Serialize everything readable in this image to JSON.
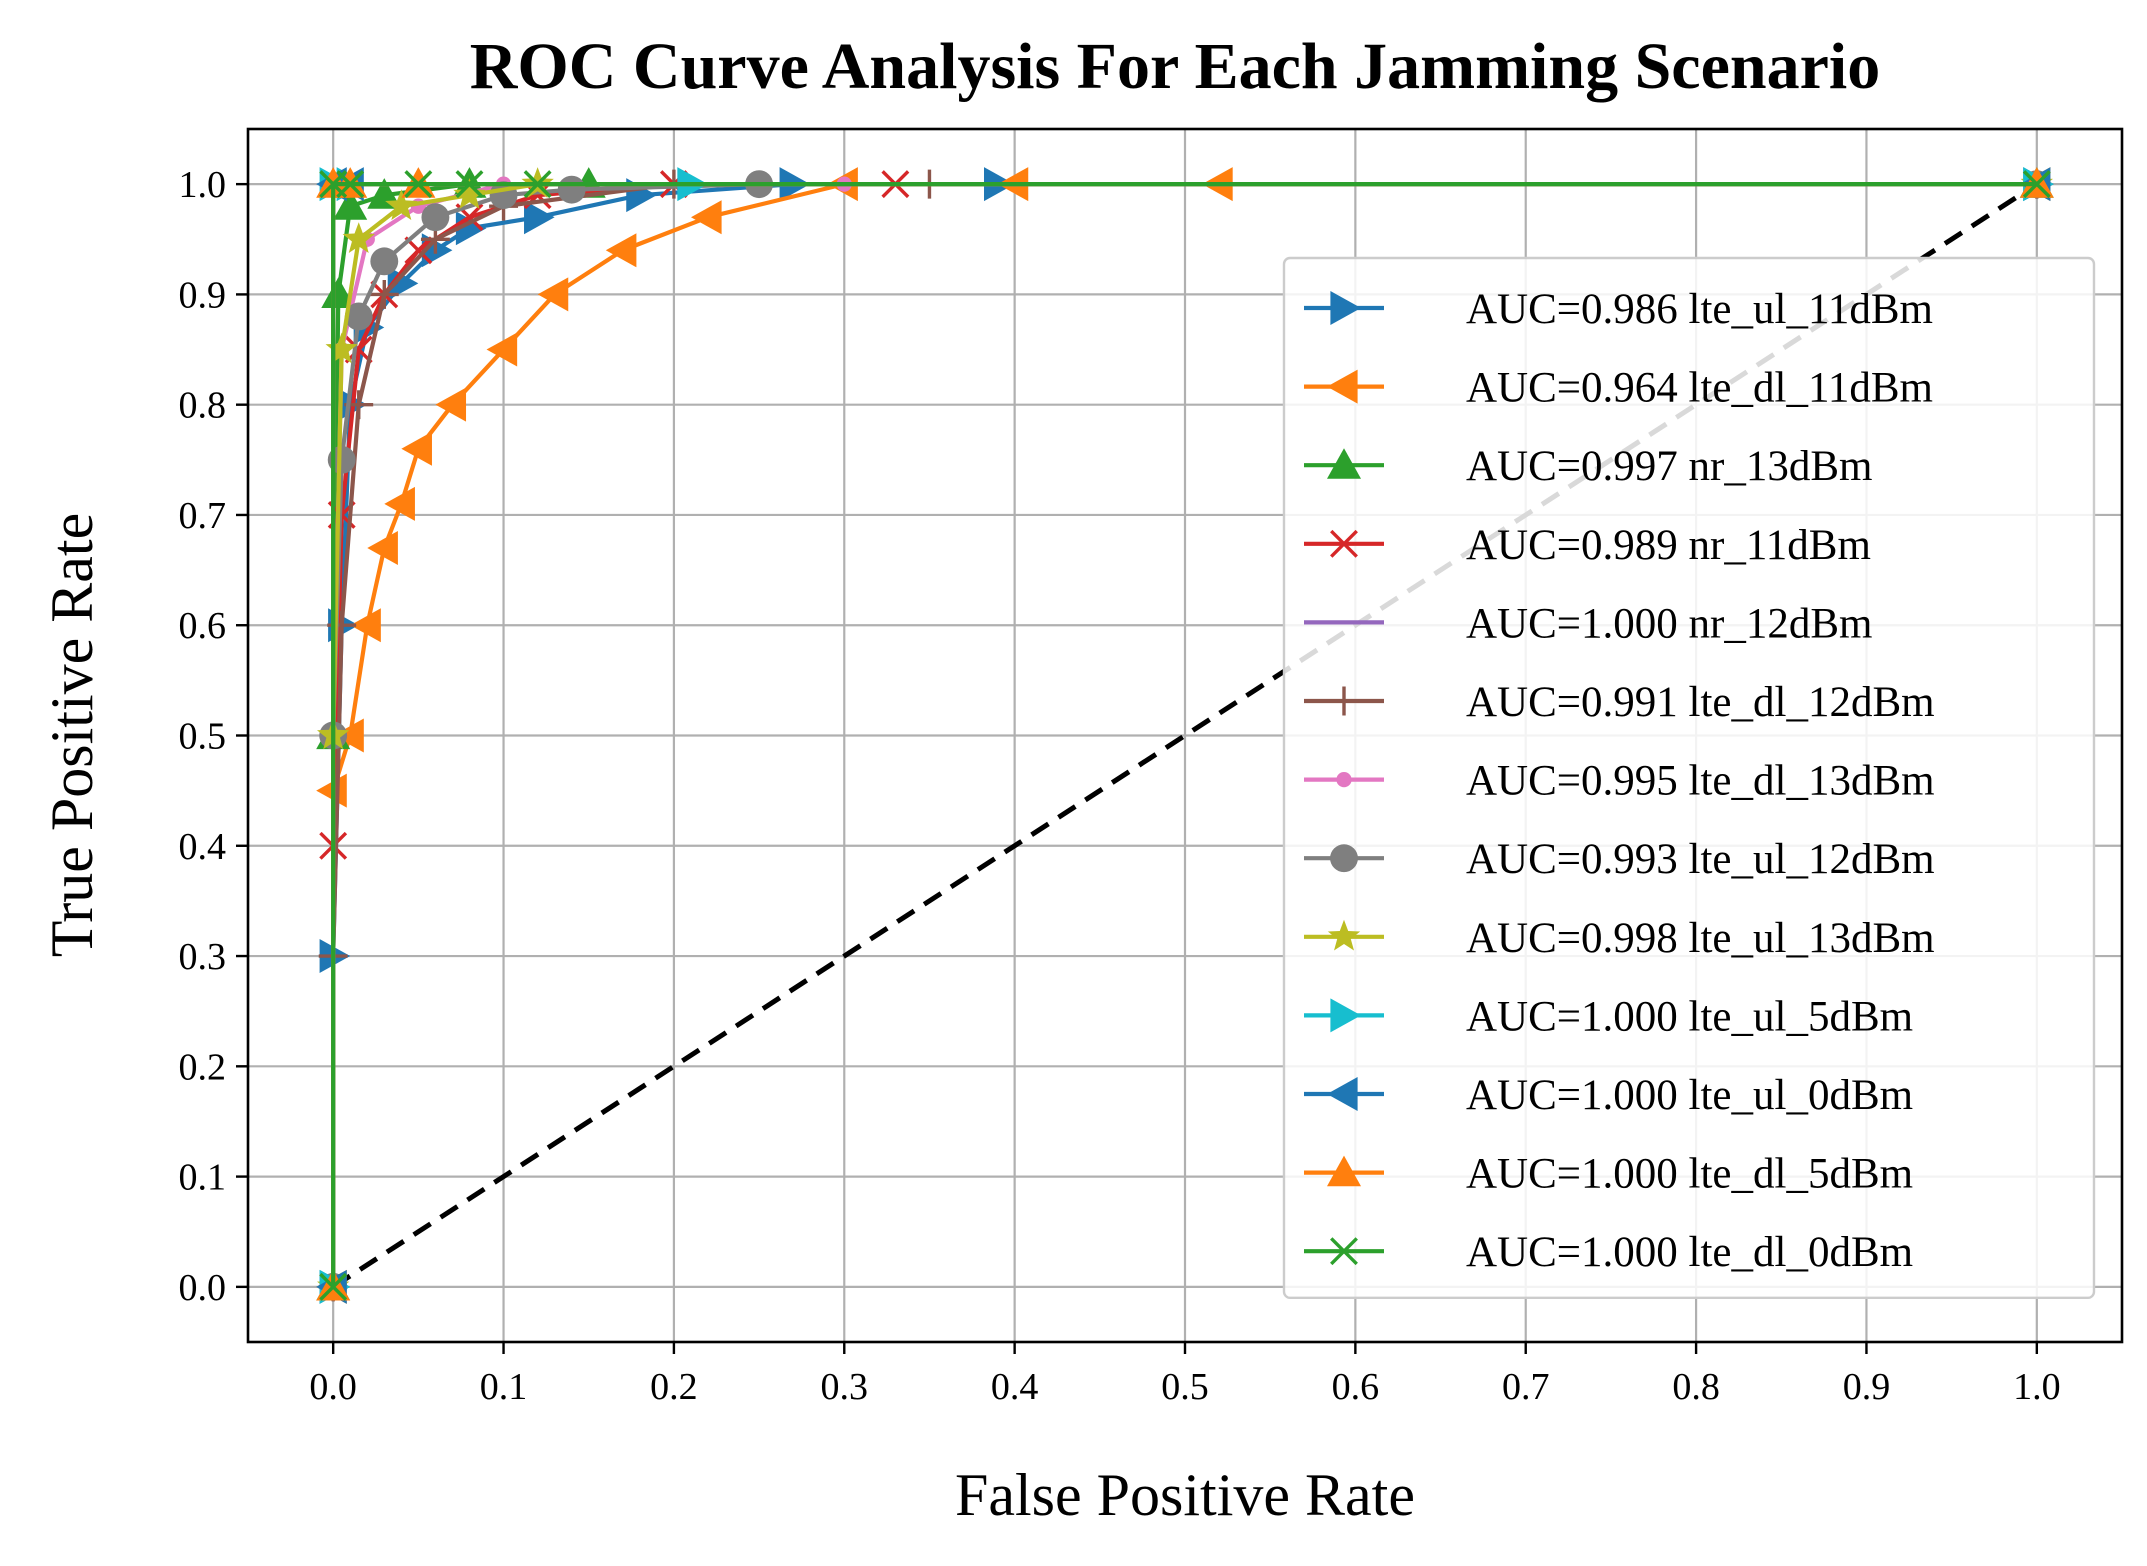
{
  "chart_data": {
    "type": "line",
    "title": "ROC Curve Analysis For Each Jamming Scenario",
    "xlabel": "False Positive Rate",
    "ylabel": "True Positive Rate",
    "xlim": [
      -0.05,
      1.05
    ],
    "ylim": [
      -0.05,
      1.05
    ],
    "xticks": [
      "0.0",
      "0.1",
      "0.2",
      "0.3",
      "0.4",
      "0.5",
      "0.6",
      "0.7",
      "0.8",
      "0.9",
      "1.0"
    ],
    "yticks": [
      "0.0",
      "0.1",
      "0.2",
      "0.3",
      "0.4",
      "0.5",
      "0.6",
      "0.7",
      "0.8",
      "0.9",
      "1.0"
    ],
    "grid": true,
    "legend_position": "center-right",
    "series": [
      {
        "name": "AUC=0.986 lte_ul_11dBm",
        "color": "#1f77b4",
        "marker": "triangle-right",
        "x": [
          0.0,
          0.0,
          0.005,
          0.01,
          0.02,
          0.04,
          0.06,
          0.08,
          0.12,
          0.18,
          0.27,
          0.39,
          1.0
        ],
        "y": [
          0.0,
          0.3,
          0.6,
          0.8,
          0.87,
          0.91,
          0.94,
          0.96,
          0.97,
          0.99,
          1.0,
          1.0,
          1.0
        ]
      },
      {
        "name": "AUC=0.964 lte_dl_11dBm",
        "color": "#ff7f0e",
        "marker": "triangle-left",
        "x": [
          0.0,
          0.0,
          0.01,
          0.02,
          0.03,
          0.04,
          0.05,
          0.07,
          0.1,
          0.13,
          0.17,
          0.22,
          0.3,
          0.4,
          0.52,
          1.0
        ],
        "y": [
          0.0,
          0.45,
          0.5,
          0.6,
          0.67,
          0.71,
          0.76,
          0.8,
          0.85,
          0.9,
          0.94,
          0.97,
          1.0,
          1.0,
          1.0,
          1.0
        ]
      },
      {
        "name": "AUC=0.997 nr_13dBm",
        "color": "#2ca02c",
        "marker": "triangle-up",
        "x": [
          0.0,
          0.0,
          0.003,
          0.01,
          0.03,
          0.08,
          0.15,
          1.0
        ],
        "y": [
          0.0,
          0.5,
          0.9,
          0.98,
          0.99,
          1.0,
          1.0,
          1.0
        ]
      },
      {
        "name": "AUC=0.989 nr_11dBm",
        "color": "#d62728",
        "marker": "x",
        "x": [
          0.0,
          0.0,
          0.005,
          0.015,
          0.03,
          0.05,
          0.08,
          0.12,
          0.2,
          0.33,
          1.0
        ],
        "y": [
          0.0,
          0.4,
          0.7,
          0.85,
          0.9,
          0.94,
          0.97,
          0.99,
          1.0,
          1.0,
          1.0
        ]
      },
      {
        "name": "AUC=1.000 nr_12dBm",
        "color": "#9467bd",
        "marker": "line",
        "x": [
          0.0,
          0.0,
          1.0
        ],
        "y": [
          0.0,
          1.0,
          1.0
        ]
      },
      {
        "name": "AUC=0.991 lte_dl_12dBm",
        "color": "#8c564b",
        "marker": "plus",
        "x": [
          0.0,
          0.0,
          0.005,
          0.015,
          0.03,
          0.06,
          0.1,
          0.2,
          0.35,
          1.0
        ],
        "y": [
          0.0,
          0.3,
          0.6,
          0.8,
          0.9,
          0.95,
          0.98,
          1.0,
          1.0,
          1.0
        ]
      },
      {
        "name": "AUC=0.995 lte_dl_13dBm",
        "color": "#e377c2",
        "marker": "point",
        "x": [
          0.0,
          0.0,
          0.005,
          0.02,
          0.05,
          0.1,
          0.3,
          1.0
        ],
        "y": [
          0.0,
          0.5,
          0.85,
          0.95,
          0.98,
          1.0,
          1.0,
          1.0
        ]
      },
      {
        "name": "AUC=0.993 lte_ul_12dBm",
        "color": "#7f7f7f",
        "marker": "circle",
        "x": [
          0.0,
          0.0,
          0.005,
          0.015,
          0.03,
          0.06,
          0.1,
          0.14,
          0.25,
          1.0
        ],
        "y": [
          0.0,
          0.5,
          0.75,
          0.88,
          0.93,
          0.97,
          0.99,
          0.995,
          1.0,
          1.0
        ]
      },
      {
        "name": "AUC=0.998 lte_ul_13dBm",
        "color": "#bcbd22",
        "marker": "star",
        "x": [
          0.0,
          0.0,
          0.005,
          0.015,
          0.04,
          0.08,
          0.12,
          1.0
        ],
        "y": [
          0.0,
          0.5,
          0.85,
          0.95,
          0.98,
          0.99,
          1.0,
          1.0
        ]
      },
      {
        "name": "AUC=1.000 lte_ul_5dBm",
        "color": "#17becf",
        "marker": "triangle-right",
        "x": [
          0.0,
          0.0,
          0.01,
          0.21,
          1.0
        ],
        "y": [
          0.0,
          1.0,
          1.0,
          1.0,
          1.0
        ]
      },
      {
        "name": "AUC=1.000 lte_ul_0dBm",
        "color": "#1f77b4",
        "marker": "triangle-left",
        "x": [
          0.0,
          0.0,
          0.01,
          1.0
        ],
        "y": [
          0.0,
          1.0,
          1.0,
          1.0
        ]
      },
      {
        "name": "AUC=1.000 lte_dl_5dBm",
        "color": "#ff7f0e",
        "marker": "triangle-up",
        "x": [
          0.0,
          0.0,
          0.01,
          0.05,
          1.0
        ],
        "y": [
          0.0,
          1.0,
          1.0,
          1.0,
          1.0
        ]
      },
      {
        "name": "AUC=1.000 lte_dl_0dBm",
        "color": "#2ca02c",
        "marker": "x",
        "x": [
          0.0,
          0.0,
          0.01,
          0.05,
          0.08,
          0.12,
          1.0
        ],
        "y": [
          0.0,
          1.0,
          1.0,
          1.0,
          1.0,
          1.0,
          1.0
        ]
      }
    ],
    "reference_line": {
      "x": [
        0.0,
        1.0
      ],
      "y": [
        0.0,
        1.0
      ],
      "color": "#000000",
      "style": "dashed"
    }
  }
}
